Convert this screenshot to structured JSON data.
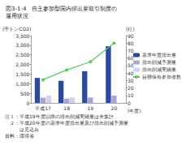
{
  "chart_data": {
    "type": "bar",
    "title": "図3-1-4　自主参加型国内排出量取引制度の\n運用状況",
    "ylabel": "(千トンCO2)",
    "y2label": "(社)",
    "xlabel": "(年度)",
    "categories": [
      "平成17",
      "18",
      "19",
      "20"
    ],
    "series": [
      {
        "name": "基準年度排出量",
        "color": "#2b4a9c",
        "values": [
          1300,
          1150,
          1650,
          2950
        ]
      },
      {
        "name": "排出削減予測量",
        "color": "#a6a6d6",
        "values": [
          270,
          220,
          280,
          380
        ]
      },
      {
        "name": "排出削減実績量",
        "color": "#cdd3ea",
        "values": [
          380,
          280,
          null,
          null
        ]
      },
      {
        "name": "目標保有参加者数",
        "color": "#5cc85c",
        "type": "line",
        "marker": "circle",
        "axis": "y2",
        "values": [
          31,
          44,
          55,
          80
        ]
      }
    ],
    "ylim": [
      0,
      3500
    ],
    "yticks": [
      0,
      500,
      {
        "value": 1000,
        "label": "1,000"
      },
      {
        "value": 1500,
        "label": "1,500"
      },
      {
        "value": 2000,
        "label": "2,000"
      },
      {
        "value": 2500,
        "label": "2,500"
      },
      {
        "value": 3000,
        "label": "3,000"
      },
      {
        "value": 3500,
        "label": "3,500"
      }
    ],
    "y2lim": [
      0,
      90
    ],
    "y2ticks": [
      0,
      10,
      20,
      30,
      40,
      50,
      60,
      70,
      80,
      90
    ],
    "legend": "right",
    "grid": false,
    "annotations": [
      "注１：平成19年度以降の排出削減実績量は未集計",
      "　２：平成20年度の基準年度排出量及び排出削減予測量",
      "　　　は見込み",
      "資料：環境省"
    ]
  }
}
